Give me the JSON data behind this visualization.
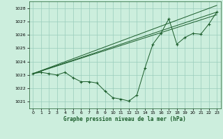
{
  "title": "Graphe pression niveau de la mer (hPa)",
  "bg_color": "#cceedd",
  "grid_color": "#99ccbb",
  "line_color": "#1a5c2a",
  "xlim": [
    -0.5,
    23.5
  ],
  "ylim": [
    1020.5,
    1028.5
  ],
  "yticks": [
    1021,
    1022,
    1023,
    1024,
    1025,
    1026,
    1027,
    1028
  ],
  "xticks": [
    0,
    1,
    2,
    3,
    4,
    5,
    6,
    7,
    8,
    9,
    10,
    11,
    12,
    13,
    14,
    15,
    16,
    17,
    18,
    19,
    20,
    21,
    22,
    23
  ],
  "series_main": {
    "x": [
      0,
      1,
      2,
      3,
      4,
      5,
      6,
      7,
      8,
      9,
      10,
      11,
      12,
      13,
      14,
      15,
      16,
      17,
      18,
      19,
      20,
      21,
      22,
      23
    ],
    "y": [
      1023.1,
      1023.2,
      1023.1,
      1023.0,
      1023.2,
      1022.8,
      1022.5,
      1022.5,
      1022.4,
      1021.8,
      1021.3,
      1021.2,
      1021.05,
      1021.5,
      1023.5,
      1025.3,
      1026.1,
      1027.2,
      1025.3,
      1025.8,
      1026.1,
      1026.05,
      1026.8,
      1027.7
    ]
  },
  "series_t1": {
    "x": [
      0,
      23
    ],
    "y": [
      1023.1,
      1027.7
    ]
  },
  "series_t2": {
    "x": [
      0,
      23
    ],
    "y": [
      1023.1,
      1027.5
    ]
  },
  "series_t3": {
    "x": [
      0,
      23
    ],
    "y": [
      1023.1,
      1028.2
    ]
  },
  "figsize": [
    3.2,
    2.0
  ],
  "dpi": 100
}
